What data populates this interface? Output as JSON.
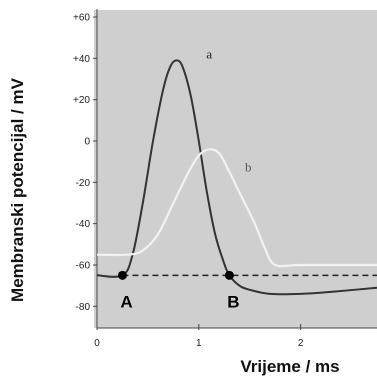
{
  "chart_data": {
    "type": "line",
    "xlabel": "Vrijeme  / ms",
    "ylabel": "Membranski potencijal / mV",
    "xlim": [
      0,
      2.75
    ],
    "ylim": [
      -90,
      60
    ],
    "x_ticks": [
      {
        "value": 0,
        "label": "0"
      },
      {
        "value": 1,
        "label": "1"
      },
      {
        "value": 2,
        "label": "2"
      }
    ],
    "y_ticks": [
      {
        "value": 60,
        "label": "+60"
      },
      {
        "value": 40,
        "label": "+40"
      },
      {
        "value": 20,
        "label": "+20"
      },
      {
        "value": 0,
        "label": "0"
      },
      {
        "value": -20,
        "label": "-20"
      },
      {
        "value": -40,
        "label": "-40"
      },
      {
        "value": -60,
        "label": "-60"
      },
      {
        "value": -80,
        "label": "-80"
      }
    ],
    "grid": false,
    "series": [
      {
        "name": "a",
        "color": "#333333",
        "x": [
          0,
          0.25,
          0.35,
          0.45,
          0.55,
          0.65,
          0.72,
          0.78,
          0.84,
          0.92,
          1.0,
          1.08,
          1.16,
          1.24,
          1.3,
          1.4,
          1.5,
          1.7,
          2.0,
          2.3,
          2.75
        ],
        "y": [
          -65,
          -65,
          -55,
          -30,
          0,
          25,
          36,
          39,
          36,
          22,
          0,
          -25,
          -45,
          -58,
          -65,
          -70,
          -72,
          -74,
          -74,
          -73,
          -71
        ]
      },
      {
        "name": "b",
        "color": "#f2f2f2",
        "x": [
          0,
          0.3,
          0.45,
          0.6,
          0.75,
          0.9,
          1.0,
          1.1,
          1.2,
          1.3,
          1.4,
          1.55,
          1.65,
          1.75,
          2.0,
          2.75
        ],
        "y": [
          -55,
          -55,
          -53,
          -45,
          -30,
          -15,
          -7,
          -4,
          -6,
          -15,
          -25,
          -40,
          -52,
          -60,
          -60,
          -60
        ]
      }
    ],
    "reference_line": {
      "y": -65,
      "style": "dashed"
    },
    "points": [
      {
        "label": "A",
        "x": 0.25,
        "y": -65
      },
      {
        "label": "B",
        "x": 1.3,
        "y": -65
      }
    ],
    "colors": {
      "background": "#cfcfcf",
      "curve_a": "#333333",
      "curve_b": "#f2f2f2",
      "reference_line": "#222222"
    }
  }
}
